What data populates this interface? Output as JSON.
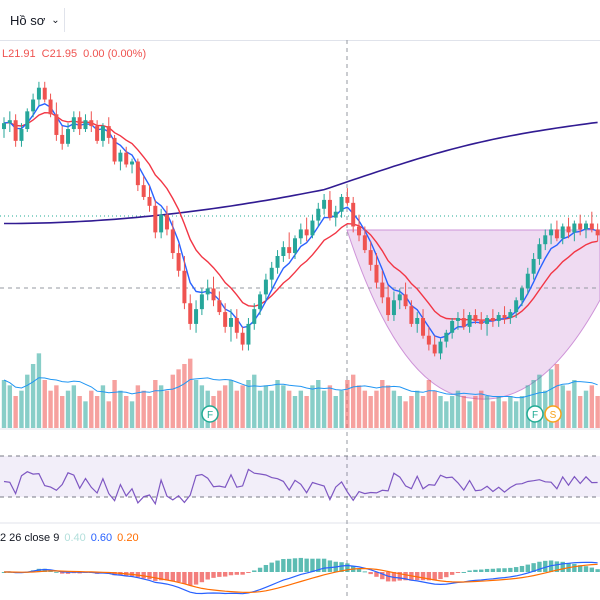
{
  "header": {
    "profile_label": "Hồ sơ",
    "chevron_icon": "chevron-down-icon"
  },
  "legend": {
    "low": "L21.91",
    "close": "C21.95",
    "change": "0.00 (0.00%)"
  },
  "macd_legend": {
    "params": "2 26 close 9",
    "hist_value": "0.40",
    "macd_value": "0.60",
    "signal_value": "0.20"
  },
  "markers": [
    {
      "label": "F",
      "color": "#22ab94"
    },
    {
      "label": "F",
      "color": "#22ab94"
    },
    {
      "label": "S",
      "color": "#f7a21b"
    }
  ],
  "colors": {
    "up": "#26a69a",
    "down": "#ef5350",
    "ema_fast": "#2962ff",
    "ema_slow": "#f23645",
    "ma_long": "#311b92",
    "rsi": "#7e57c2",
    "volume_ma": "#2196f3",
    "pattern_fill": "#e1bee7"
  },
  "chart_data": {
    "type": "candlestick",
    "candles_ohlc": [
      [
        24.0,
        24.4,
        23.7,
        24.2
      ],
      [
        24.2,
        24.6,
        23.9,
        24.3
      ],
      [
        24.3,
        24.5,
        23.4,
        23.6
      ],
      [
        23.6,
        24.2,
        23.4,
        24.0
      ],
      [
        24.0,
        24.7,
        23.9,
        24.6
      ],
      [
        24.6,
        25.2,
        24.4,
        25.0
      ],
      [
        25.0,
        25.6,
        24.8,
        25.4
      ],
      [
        25.4,
        25.6,
        24.9,
        25.0
      ],
      [
        25.0,
        25.2,
        24.4,
        24.5
      ],
      [
        24.5,
        24.9,
        23.6,
        23.8
      ],
      [
        23.8,
        24.1,
        23.3,
        23.5
      ],
      [
        23.5,
        24.2,
        23.4,
        24.0
      ],
      [
        24.0,
        24.6,
        23.9,
        24.4
      ],
      [
        24.4,
        24.6,
        23.8,
        24.0
      ],
      [
        24.0,
        24.5,
        23.9,
        24.3
      ],
      [
        24.3,
        24.6,
        23.9,
        24.1
      ],
      [
        24.1,
        24.3,
        23.5,
        23.6
      ],
      [
        23.6,
        24.2,
        23.4,
        24.1
      ],
      [
        24.1,
        24.4,
        23.5,
        23.7
      ],
      [
        23.7,
        23.8,
        22.8,
        22.9
      ],
      [
        22.9,
        23.3,
        22.6,
        23.2
      ],
      [
        23.2,
        23.4,
        22.7,
        22.8
      ],
      [
        22.8,
        23.0,
        22.5,
        22.9
      ],
      [
        22.9,
        23.0,
        21.9,
        22.1
      ],
      [
        22.1,
        22.4,
        21.6,
        21.7
      ],
      [
        21.7,
        22.1,
        21.2,
        21.4
      ],
      [
        21.4,
        21.6,
        20.3,
        20.5
      ],
      [
        20.5,
        21.3,
        20.3,
        21.1
      ],
      [
        21.1,
        21.4,
        20.4,
        20.6
      ],
      [
        20.6,
        20.9,
        19.6,
        19.8
      ],
      [
        19.8,
        20.1,
        19.0,
        19.2
      ],
      [
        19.2,
        19.7,
        17.9,
        18.1
      ],
      [
        18.1,
        18.4,
        17.2,
        17.4
      ],
      [
        17.4,
        18.2,
        17.1,
        17.9
      ],
      [
        17.9,
        18.6,
        17.7,
        18.4
      ],
      [
        18.4,
        18.9,
        18.2,
        18.6
      ],
      [
        18.6,
        19.0,
        18.0,
        18.2
      ],
      [
        18.2,
        18.5,
        17.7,
        17.8
      ],
      [
        17.8,
        18.1,
        17.1,
        17.3
      ],
      [
        17.3,
        17.9,
        16.8,
        17.6
      ],
      [
        17.6,
        17.9,
        16.9,
        17.1
      ],
      [
        17.1,
        17.3,
        16.5,
        16.7
      ],
      [
        16.7,
        17.6,
        16.5,
        17.4
      ],
      [
        17.4,
        18.1,
        17.2,
        17.9
      ],
      [
        17.9,
        18.5,
        17.7,
        18.4
      ],
      [
        18.4,
        19.1,
        18.2,
        18.9
      ],
      [
        18.9,
        19.5,
        18.6,
        19.3
      ],
      [
        19.3,
        19.9,
        19.1,
        19.7
      ],
      [
        19.7,
        20.2,
        19.5,
        20.0
      ],
      [
        20.0,
        20.5,
        19.6,
        19.8
      ],
      [
        19.8,
        20.4,
        19.6,
        20.3
      ],
      [
        20.3,
        20.8,
        20.1,
        20.6
      ],
      [
        20.6,
        21.0,
        20.2,
        20.4
      ],
      [
        20.4,
        21.1,
        20.3,
        20.9
      ],
      [
        20.9,
        21.5,
        20.7,
        21.3
      ],
      [
        21.3,
        21.8,
        21.1,
        21.6
      ],
      [
        21.6,
        21.9,
        20.9,
        21.0
      ],
      [
        21.0,
        21.4,
        20.7,
        21.2
      ],
      [
        21.2,
        21.8,
        21.0,
        21.7
      ],
      [
        21.7,
        22.0,
        21.4,
        21.5
      ],
      [
        21.5,
        21.7,
        20.5,
        20.7
      ],
      [
        20.7,
        21.1,
        20.2,
        20.4
      ],
      [
        20.4,
        20.7,
        19.8,
        19.9
      ],
      [
        19.9,
        20.2,
        19.2,
        19.4
      ],
      [
        19.4,
        19.8,
        18.6,
        18.8
      ],
      [
        18.8,
        19.2,
        18.1,
        18.3
      ],
      [
        18.3,
        18.7,
        17.5,
        17.7
      ],
      [
        17.7,
        18.5,
        17.5,
        18.2
      ],
      [
        18.2,
        18.6,
        17.9,
        18.4
      ],
      [
        18.4,
        18.8,
        17.9,
        18.0
      ],
      [
        18.0,
        18.2,
        17.3,
        17.4
      ],
      [
        17.4,
        17.8,
        17.1,
        17.6
      ],
      [
        17.6,
        17.9,
        16.9,
        17.0
      ],
      [
        17.0,
        17.3,
        16.5,
        16.7
      ],
      [
        16.7,
        17.0,
        16.3,
        16.4
      ],
      [
        16.4,
        16.9,
        16.2,
        16.8
      ],
      [
        16.8,
        17.2,
        16.6,
        17.1
      ],
      [
        17.1,
        17.6,
        16.9,
        17.5
      ],
      [
        17.5,
        17.8,
        17.2,
        17.6
      ],
      [
        17.6,
        17.9,
        17.2,
        17.3
      ],
      [
        17.3,
        17.8,
        17.1,
        17.7
      ],
      [
        17.7,
        17.9,
        17.4,
        17.5
      ],
      [
        17.5,
        17.8,
        17.2,
        17.4
      ],
      [
        17.4,
        17.7,
        17.0,
        17.6
      ],
      [
        17.6,
        17.9,
        17.3,
        17.5
      ],
      [
        17.5,
        17.8,
        17.3,
        17.7
      ],
      [
        17.7,
        18.0,
        17.4,
        17.6
      ],
      [
        17.6,
        17.9,
        17.4,
        17.8
      ],
      [
        17.8,
        18.3,
        17.6,
        18.2
      ],
      [
        18.2,
        18.7,
        18.0,
        18.6
      ],
      [
        18.6,
        19.3,
        18.4,
        19.1
      ],
      [
        19.1,
        19.8,
        18.9,
        19.6
      ],
      [
        19.6,
        20.3,
        19.4,
        20.1
      ],
      [
        20.1,
        20.6,
        19.9,
        20.4
      ],
      [
        20.4,
        20.8,
        20.1,
        20.6
      ],
      [
        20.6,
        20.9,
        20.2,
        20.3
      ],
      [
        20.3,
        20.8,
        20.1,
        20.7
      ],
      [
        20.7,
        21.0,
        20.3,
        20.5
      ],
      [
        20.5,
        20.9,
        20.2,
        20.8
      ],
      [
        20.8,
        21.1,
        20.4,
        20.6
      ],
      [
        20.6,
        20.9,
        20.3,
        20.8
      ],
      [
        20.8,
        21.2,
        20.5,
        20.6
      ],
      [
        20.6,
        20.8,
        20.2,
        20.4
      ]
    ],
    "volume": [
      9,
      8,
      6,
      7,
      10,
      12,
      14,
      9,
      7,
      8,
      6,
      7,
      8,
      6,
      5,
      7,
      6,
      8,
      5,
      9,
      7,
      6,
      5,
      8,
      7,
      6,
      9,
      8,
      7,
      10,
      11,
      12,
      13,
      9,
      8,
      7,
      6,
      7,
      8,
      9,
      7,
      8,
      9,
      10,
      7,
      8,
      7,
      9,
      8,
      7,
      6,
      7,
      6,
      8,
      9,
      7,
      8,
      6,
      7,
      9,
      10,
      8,
      7,
      6,
      7,
      9,
      8,
      7,
      6,
      5,
      6,
      7,
      6,
      9,
      7,
      6,
      5,
      6,
      7,
      6,
      5,
      6,
      7,
      6,
      5,
      6,
      5,
      6,
      5,
      6,
      8,
      9,
      10,
      7,
      11,
      12,
      8,
      7,
      9,
      6,
      7,
      8,
      6
    ]
  }
}
